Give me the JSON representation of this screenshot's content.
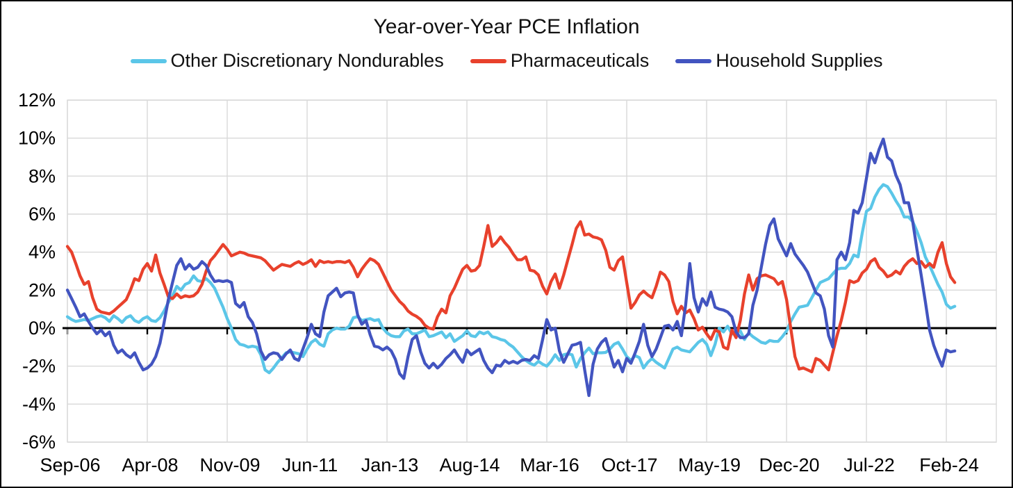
{
  "title": "Year-over-Year PCE Inflation",
  "palette": {
    "nondurables": "#5BC6E8",
    "pharmaceuticals": "#E8412C",
    "household": "#4254C0",
    "grid": "#D9D9D9",
    "zero_axis": "#000000",
    "text": "#111111",
    "background": "#FFFFFF"
  },
  "chart_data": {
    "type": "line",
    "title": "Year-over-Year PCE Inflation",
    "xlabel": "",
    "ylabel": "",
    "ylim": [
      -6,
      12
    ],
    "y_tick_step": 2,
    "y_tick_labels": [
      "12%",
      "10%",
      "8%",
      "6%",
      "4%",
      "2%",
      "0%",
      "-2%",
      "-4%",
      "-6%"
    ],
    "x_tick_labels": [
      "Sep-06",
      "Apr-08",
      "Nov-09",
      "Jun-11",
      "Jan-13",
      "Aug-14",
      "Mar-16",
      "Oct-17",
      "May-19",
      "Dec-20",
      "Jul-22",
      "Feb-24"
    ],
    "x_tick_interval_months": 19,
    "x_is_monthly_from": "Sep-06",
    "grid": true,
    "legend_position": "top",
    "zero_axis_highlighted": true,
    "series": [
      {
        "name": "Other Discretionary Nondurables",
        "color": "#5BC6E8",
        "values": [
          0.6,
          0.45,
          0.35,
          0.4,
          0.45,
          0.4,
          0.5,
          0.6,
          0.65,
          0.55,
          0.35,
          0.65,
          0.5,
          0.3,
          0.55,
          0.65,
          0.4,
          0.3,
          0.5,
          0.6,
          0.4,
          0.35,
          0.55,
          0.9,
          1.35,
          1.7,
          2.2,
          2.0,
          2.3,
          2.4,
          2.75,
          2.5,
          2.45,
          2.6,
          2.4,
          2.1,
          1.6,
          1.1,
          0.5,
          0.0,
          -0.6,
          -0.85,
          -0.9,
          -1.0,
          -0.95,
          -1.0,
          -1.4,
          -2.2,
          -2.35,
          -2.1,
          -1.8,
          -1.55,
          -1.3,
          -1.25,
          -1.3,
          -1.35,
          -1.5,
          -1.1,
          -0.75,
          -0.6,
          -0.85,
          -0.95,
          -0.3,
          -0.1,
          0.0,
          -0.05,
          -0.05,
          0.1,
          0.55,
          0.6,
          0.4,
          0.45,
          0.5,
          0.4,
          0.45,
          0.0,
          -0.25,
          -0.4,
          -0.45,
          -0.45,
          -0.15,
          -0.05,
          -0.3,
          -0.3,
          -0.2,
          -0.1,
          -0.45,
          -0.4,
          -0.3,
          -0.2,
          -0.5,
          -0.3,
          -0.7,
          -0.55,
          -0.4,
          -0.15,
          -0.4,
          -0.45,
          -0.2,
          -0.3,
          -0.2,
          -0.45,
          -0.5,
          -0.6,
          -0.65,
          -0.85,
          -1.0,
          -1.25,
          -1.5,
          -1.7,
          -1.85,
          -1.95,
          -1.75,
          -1.9,
          -2.0,
          -1.75,
          -1.4,
          -1.7,
          -1.4,
          -1.35,
          -1.4,
          -2.05,
          -1.6,
          -1.3,
          -1.05,
          -1.35,
          -1.3,
          -1.3,
          -1.28,
          -1.1,
          -0.85,
          -0.75,
          -1.1,
          -1.5,
          -1.7,
          -1.45,
          -1.55,
          -2.1,
          -1.8,
          -1.6,
          -1.8,
          -1.95,
          -2.1,
          -1.6,
          -1.1,
          -1.0,
          -1.15,
          -1.2,
          -1.25,
          -1.0,
          -0.75,
          -0.6,
          -0.85,
          -1.45,
          -0.85,
          0.0,
          -0.2,
          0.1,
          -0.3,
          -0.3,
          -0.15,
          -0.6,
          -0.25,
          -0.45,
          -0.6,
          -0.75,
          -0.8,
          -0.65,
          -0.7,
          -0.7,
          -0.45,
          -0.15,
          0.35,
          0.75,
          1.1,
          1.15,
          1.2,
          1.6,
          2.0,
          2.4,
          2.5,
          2.6,
          2.85,
          3.1,
          3.15,
          3.15,
          3.4,
          3.85,
          3.75,
          5.0,
          6.15,
          6.3,
          6.9,
          7.3,
          7.55,
          7.45,
          7.1,
          6.7,
          6.35,
          5.85,
          5.85,
          5.6,
          5.1,
          4.5,
          3.75,
          3.3,
          2.8,
          2.3,
          1.9,
          1.25,
          1.05,
          1.15
        ]
      },
      {
        "name": "Pharmaceuticals",
        "color": "#E8412C",
        "values": [
          4.3,
          4.0,
          3.4,
          2.75,
          2.3,
          2.45,
          1.6,
          1.0,
          0.85,
          0.8,
          0.75,
          0.9,
          1.1,
          1.3,
          1.5,
          2.0,
          2.6,
          2.5,
          3.1,
          3.4,
          3.0,
          3.85,
          2.9,
          2.3,
          1.65,
          1.55,
          1.8,
          1.6,
          1.7,
          1.65,
          1.7,
          1.9,
          2.3,
          3.0,
          3.55,
          3.8,
          4.1,
          4.4,
          4.15,
          3.8,
          3.9,
          4.0,
          3.95,
          3.85,
          3.8,
          3.75,
          3.7,
          3.55,
          3.3,
          3.05,
          3.2,
          3.35,
          3.3,
          3.25,
          3.4,
          3.5,
          3.35,
          3.45,
          3.6,
          3.25,
          3.55,
          3.45,
          3.5,
          3.45,
          3.5,
          3.5,
          3.45,
          3.55,
          3.2,
          2.7,
          3.1,
          3.4,
          3.65,
          3.55,
          3.35,
          2.9,
          2.45,
          2.0,
          1.7,
          1.4,
          1.2,
          0.9,
          0.73,
          0.62,
          0.45,
          0.15,
          0.0,
          -0.05,
          0.6,
          1.0,
          0.8,
          1.7,
          2.1,
          2.6,
          3.1,
          3.3,
          3.0,
          3.05,
          3.3,
          4.3,
          5.4,
          4.3,
          4.5,
          4.8,
          4.5,
          4.25,
          3.9,
          3.6,
          3.6,
          3.75,
          3.05,
          3.0,
          2.8,
          2.2,
          1.8,
          2.45,
          2.85,
          2.1,
          2.8,
          3.6,
          4.4,
          5.25,
          5.6,
          4.9,
          4.95,
          4.8,
          4.75,
          4.65,
          4.1,
          3.2,
          3.05,
          3.55,
          3.75,
          2.4,
          1.05,
          1.35,
          1.75,
          1.95,
          1.75,
          1.6,
          2.2,
          2.95,
          2.8,
          2.45,
          1.4,
          0.75,
          1.15,
          0.8,
          0.95,
          0.5,
          -0.1,
          0.05,
          -0.3,
          -0.6,
          -0.1,
          -0.2,
          -1.0,
          -1.1,
          -0.1,
          -0.5,
          0.4,
          1.8,
          2.8,
          2.0,
          2.6,
          2.75,
          2.8,
          2.7,
          2.6,
          2.3,
          2.45,
          1.5,
          0.0,
          -1.5,
          -2.15,
          -2.1,
          -2.2,
          -2.3,
          -1.6,
          -1.7,
          -1.95,
          -2.2,
          -1.3,
          -0.4,
          0.4,
          1.35,
          2.5,
          2.4,
          2.5,
          2.9,
          3.1,
          3.5,
          3.65,
          3.2,
          3.0,
          2.7,
          2.8,
          3.0,
          2.85,
          3.25,
          3.5,
          3.65,
          3.4,
          3.5,
          3.2,
          3.4,
          3.2,
          4.0,
          4.5,
          3.4,
          2.7,
          2.4
        ]
      },
      {
        "name": "Household Supplies",
        "color": "#4254C0",
        "values": [
          2.0,
          1.55,
          1.1,
          0.6,
          0.75,
          0.35,
          0.0,
          -0.3,
          -0.1,
          -0.4,
          -0.2,
          -0.9,
          -1.3,
          -1.15,
          -1.4,
          -1.55,
          -1.3,
          -1.8,
          -2.2,
          -2.1,
          -1.9,
          -1.5,
          -0.8,
          0.3,
          1.5,
          2.4,
          3.3,
          3.65,
          3.1,
          3.35,
          3.1,
          3.2,
          3.5,
          3.3,
          2.8,
          2.45,
          2.5,
          2.45,
          2.5,
          2.4,
          1.3,
          1.1,
          1.35,
          0.6,
          0.3,
          -0.3,
          -1.2,
          -1.65,
          -1.4,
          -1.3,
          -1.35,
          -1.65,
          -1.35,
          -1.15,
          -1.6,
          -1.7,
          -1.1,
          -0.5,
          0.2,
          -0.3,
          -0.45,
          0.85,
          1.7,
          1.9,
          2.1,
          1.65,
          1.85,
          1.9,
          1.85,
          0.7,
          0.2,
          0.4,
          -0.35,
          -0.95,
          -1.0,
          -1.15,
          -1.0,
          -1.2,
          -1.65,
          -2.4,
          -2.65,
          -1.5,
          -0.6,
          -0.4,
          -1.25,
          -1.85,
          -2.1,
          -1.85,
          -2.1,
          -1.9,
          -1.6,
          -1.4,
          -1.15,
          -1.5,
          -1.8,
          -1.15,
          -1.4,
          -1.25,
          -1.1,
          -1.7,
          -2.1,
          -2.35,
          -1.95,
          -2.0,
          -1.7,
          -1.85,
          -1.75,
          -1.85,
          -1.7,
          -1.65,
          -1.7,
          -1.45,
          -1.6,
          -0.6,
          0.45,
          -0.1,
          0.0,
          -1.2,
          -1.8,
          -1.35,
          -0.9,
          -0.85,
          -0.75,
          -2.2,
          -3.55,
          -1.9,
          -1.1,
          -0.75,
          -0.55,
          -1.3,
          -2.05,
          -1.7,
          -2.3,
          -1.6,
          -1.85,
          -1.3,
          -0.7,
          0.2,
          -0.9,
          -1.5,
          -1.1,
          -0.5,
          0.1,
          0.15,
          -0.1,
          0.35,
          -0.4,
          1.2,
          3.4,
          1.6,
          0.85,
          1.55,
          1.2,
          1.9,
          1.1,
          1.0,
          0.95,
          0.85,
          0.6,
          -0.2,
          -0.5,
          -0.5,
          -0.3,
          1.2,
          2.0,
          3.2,
          4.4,
          5.4,
          5.75,
          4.7,
          4.25,
          3.8,
          4.45,
          3.9,
          3.6,
          3.3,
          2.95,
          2.4,
          1.85,
          1.7,
          1.0,
          -0.4,
          -1.0,
          3.6,
          4.0,
          3.6,
          4.5,
          6.2,
          6.05,
          6.6,
          7.9,
          9.2,
          8.7,
          9.4,
          9.95,
          9.0,
          8.8,
          8.05,
          7.55,
          6.6,
          6.6,
          5.6,
          4.15,
          2.8,
          1.4,
          -0.1,
          -0.9,
          -1.5,
          -2.0,
          -1.15,
          -1.25,
          -1.2
        ]
      }
    ]
  }
}
